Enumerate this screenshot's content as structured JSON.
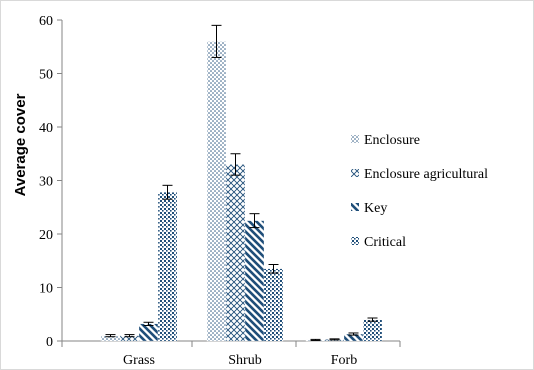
{
  "chart_data": {
    "type": "bar",
    "title": "",
    "xlabel": "",
    "ylabel": "Average cover",
    "ylim": [
      0,
      60
    ],
    "yticks": [
      0,
      10,
      20,
      30,
      40,
      50,
      60
    ],
    "categories": [
      "Grass",
      "Shrub",
      "Forb"
    ],
    "series": [
      {
        "name": "Enclosure",
        "values": [
          1.0,
          56.0,
          0.2
        ],
        "errors": [
          0.2,
          3.0,
          0.1
        ],
        "pattern": "dots",
        "color": "#1f4e79"
      },
      {
        "name": "Enclosure agricultural",
        "values": [
          1.0,
          33.0,
          0.3
        ],
        "errors": [
          0.2,
          2.0,
          0.1
        ],
        "pattern": "crosshatch",
        "color": "#1f4e79"
      },
      {
        "name": "Key",
        "values": [
          3.2,
          22.5,
          1.3
        ],
        "errors": [
          0.3,
          1.3,
          0.2
        ],
        "pattern": "diagonal",
        "color": "#1f4e79"
      },
      {
        "name": "Critical",
        "values": [
          27.8,
          13.5,
          4.0
        ],
        "errors": [
          1.3,
          0.8,
          0.3
        ],
        "pattern": "dense-dots",
        "color": "#1f4e79"
      }
    ],
    "grid": false,
    "legend_position": "right"
  }
}
